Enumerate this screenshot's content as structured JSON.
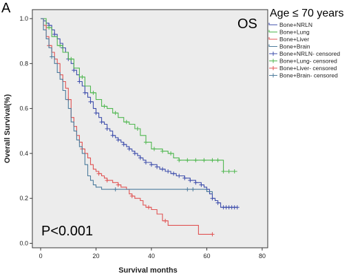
{
  "panel_letter": "A",
  "chart_data": {
    "type": "line",
    "step": true,
    "subtitle": "OS",
    "group_label": "Age ≤ 70 years",
    "annotation": "P<0.001",
    "xlabel": "Survival months",
    "ylabel": "Overall Survival(%)",
    "xlim": [
      -3,
      82
    ],
    "ylim": [
      -0.02,
      1.04
    ],
    "xticks": [
      0,
      20,
      40,
      60,
      80
    ],
    "yticks": [
      0.0,
      0.2,
      0.4,
      0.6,
      0.8,
      1.0
    ],
    "xtick_labels": [
      "0",
      "20",
      "40",
      "60",
      "80"
    ],
    "ytick_labels": [
      "0.0",
      "0.2",
      "0.4",
      "0.6",
      "0.8",
      "1.0"
    ],
    "grid": false,
    "plot_background": "#ececec",
    "legend_position": "top-right",
    "legend": [
      "Bone+NRLN",
      "Bone+Lung",
      "Bone+Liver",
      "Bone+Brain",
      "Bone+NRLN- censored",
      "Bone+Lung- censored",
      "Bone+Liver- censored",
      "Bone+Brain- censored"
    ],
    "series": [
      {
        "name": "Bone+NRLN",
        "color": "#3c4cab",
        "x": [
          0,
          1,
          2,
          3,
          4,
          5,
          6,
          7,
          8,
          9,
          10,
          11,
          12,
          13,
          14,
          15,
          16,
          17,
          18,
          19,
          20,
          21,
          22,
          23,
          24,
          25,
          26,
          27,
          28,
          29,
          30,
          31,
          32,
          33,
          34,
          35,
          36,
          37,
          38,
          39,
          40,
          41,
          42,
          43,
          44,
          45,
          46,
          47,
          48,
          49,
          50,
          51,
          52,
          53,
          54,
          55,
          56,
          57,
          58,
          59,
          60,
          61,
          62,
          63,
          64,
          65,
          66,
          67,
          68,
          69,
          70,
          71
        ],
        "y": [
          1.0,
          0.99,
          0.98,
          0.97,
          0.95,
          0.93,
          0.91,
          0.89,
          0.87,
          0.85,
          0.82,
          0.8,
          0.77,
          0.75,
          0.72,
          0.7,
          0.67,
          0.65,
          0.63,
          0.6,
          0.58,
          0.56,
          0.54,
          0.53,
          0.51,
          0.5,
          0.48,
          0.47,
          0.46,
          0.45,
          0.44,
          0.43,
          0.42,
          0.41,
          0.4,
          0.39,
          0.38,
          0.37,
          0.36,
          0.36,
          0.35,
          0.35,
          0.34,
          0.33,
          0.33,
          0.32,
          0.32,
          0.31,
          0.31,
          0.3,
          0.3,
          0.3,
          0.29,
          0.29,
          0.28,
          0.28,
          0.27,
          0.27,
          0.26,
          0.25,
          0.24,
          0.22,
          0.2,
          0.19,
          0.18,
          0.16,
          0.16,
          0.16,
          0.16,
          0.16,
          0.16,
          0.16
        ],
        "censored_x": [
          3,
          5,
          8,
          10,
          12,
          14,
          16,
          18,
          20,
          22,
          24,
          26,
          28,
          30,
          32,
          34,
          36,
          38,
          40,
          42,
          44,
          46,
          48,
          50,
          52,
          54,
          56,
          58,
          60,
          62,
          64,
          66,
          67,
          68,
          69,
          70,
          71
        ]
      },
      {
        "name": "Bone+Lung",
        "color": "#4cb64c",
        "x": [
          0,
          2,
          4,
          6,
          8,
          10,
          12,
          14,
          16,
          18,
          20,
          22,
          24,
          26,
          28,
          30,
          32,
          34,
          36,
          38,
          40,
          42,
          44,
          46,
          48,
          50,
          52,
          54,
          56,
          58,
          60,
          62,
          64,
          65,
          66,
          67,
          68,
          69,
          70,
          71
        ],
        "y": [
          1.0,
          0.96,
          0.92,
          0.88,
          0.85,
          0.82,
          0.78,
          0.74,
          0.7,
          0.67,
          0.64,
          0.61,
          0.6,
          0.58,
          0.56,
          0.54,
          0.53,
          0.51,
          0.48,
          0.45,
          0.42,
          0.42,
          0.41,
          0.4,
          0.38,
          0.37,
          0.37,
          0.37,
          0.37,
          0.37,
          0.37,
          0.37,
          0.37,
          0.37,
          0.32,
          0.32,
          0.32,
          0.32,
          0.32,
          0.32
        ],
        "censored_x": [
          3,
          7,
          11,
          15,
          19,
          23,
          27,
          31,
          35,
          38,
          41,
          44,
          47,
          50,
          53,
          56,
          59,
          62,
          64,
          66,
          68,
          70
        ]
      },
      {
        "name": "Bone+Liver",
        "color": "#e05050",
        "x": [
          0,
          1,
          2,
          3,
          4,
          5,
          6,
          7,
          8,
          9,
          10,
          11,
          12,
          13,
          14,
          15,
          16,
          17,
          18,
          19,
          20,
          21,
          22,
          23,
          24,
          25,
          26,
          27,
          28,
          29,
          30,
          31,
          32,
          33,
          34,
          35,
          36,
          37,
          38,
          40,
          42,
          44,
          46,
          48,
          50,
          52,
          55,
          57,
          58,
          60,
          62
        ],
        "y": [
          1.0,
          0.97,
          0.92,
          0.88,
          0.85,
          0.82,
          0.8,
          0.75,
          0.72,
          0.69,
          0.64,
          0.56,
          0.52,
          0.48,
          0.45,
          0.42,
          0.4,
          0.38,
          0.35,
          0.33,
          0.32,
          0.31,
          0.3,
          0.29,
          0.28,
          0.28,
          0.27,
          0.27,
          0.26,
          0.25,
          0.25,
          0.24,
          0.22,
          0.21,
          0.2,
          0.2,
          0.19,
          0.17,
          0.16,
          0.15,
          0.13,
          0.1,
          0.08,
          0.08,
          0.08,
          0.08,
          0.08,
          0.04,
          0.04,
          0.04,
          0.04
        ],
        "censored_x": [
          3,
          10,
          15,
          21,
          24,
          28,
          33,
          39,
          45,
          62
        ]
      },
      {
        "name": "Bone+Brain",
        "color": "#4a7a9b",
        "x": [
          0,
          1,
          2,
          3,
          4,
          5,
          6,
          7,
          8,
          9,
          10,
          11,
          12,
          13,
          14,
          15,
          16,
          17,
          18,
          19,
          20,
          22,
          25,
          27,
          30,
          35,
          40,
          45,
          50,
          55,
          60,
          62
        ],
        "y": [
          1.0,
          0.95,
          0.91,
          0.87,
          0.83,
          0.8,
          0.76,
          0.73,
          0.68,
          0.64,
          0.6,
          0.54,
          0.5,
          0.46,
          0.43,
          0.4,
          0.35,
          0.3,
          0.28,
          0.26,
          0.25,
          0.24,
          0.24,
          0.24,
          0.24,
          0.24,
          0.24,
          0.24,
          0.24,
          0.24,
          0.23,
          0.22
        ],
        "censored_x": [
          4,
          27,
          53,
          55
        ]
      }
    ]
  }
}
